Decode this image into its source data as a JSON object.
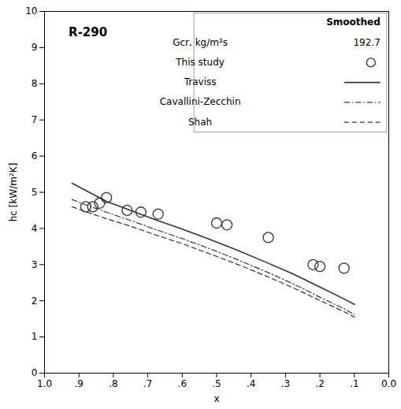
{
  "chart_data": {
    "type": "line",
    "xlabel": "x",
    "ylabel": "hc [kW/m²K]",
    "xlim": [
      1.0,
      0.0
    ],
    "ylim": [
      0,
      10
    ],
    "xticks": [
      {
        "value": 1.0,
        "label": "1.0"
      },
      {
        "value": 0.9,
        "label": ".9"
      },
      {
        "value": 0.8,
        "label": ".8"
      },
      {
        "value": 0.7,
        "label": ".7"
      },
      {
        "value": 0.6,
        "label": ".6"
      },
      {
        "value": 0.5,
        "label": ".5"
      },
      {
        "value": 0.4,
        "label": ".4"
      },
      {
        "value": 0.3,
        "label": ".3"
      },
      {
        "value": 0.2,
        "label": ".2"
      },
      {
        "value": 0.1,
        "label": ".1"
      },
      {
        "value": 0.0,
        "label": "0.0"
      }
    ],
    "yticks": [
      0,
      1,
      2,
      3,
      4,
      5,
      6,
      7,
      8,
      9,
      10
    ],
    "grid": false,
    "legend": "upper right",
    "legend_title": "Smoothed",
    "legend_note": {
      "label": "Gcr, kg/m²s",
      "value": 192.7
    },
    "annotations": [
      {
        "text": "R-290",
        "x": 0.93,
        "y": 9.55
      }
    ],
    "series": [
      {
        "name": "This study",
        "type": "scatter",
        "marker": "circle",
        "color": "#333333",
        "x": [
          0.88,
          0.86,
          0.84,
          0.82,
          0.76,
          0.72,
          0.67,
          0.5,
          0.47,
          0.35,
          0.22,
          0.2,
          0.13
        ],
        "values": [
          4.6,
          4.6,
          4.7,
          4.85,
          4.5,
          4.45,
          4.4,
          4.15,
          4.1,
          3.75,
          3.0,
          2.95,
          2.9
        ]
      },
      {
        "name": "Traviss",
        "type": "line",
        "line_style": "solid",
        "color": "#333333",
        "x": [
          0.92,
          0.88,
          0.82,
          0.75,
          0.68,
          0.6,
          0.52,
          0.44,
          0.36,
          0.28,
          0.2,
          0.13,
          0.1
        ],
        "values": [
          5.25,
          5.05,
          4.75,
          4.5,
          4.25,
          3.98,
          3.7,
          3.4,
          3.08,
          2.75,
          2.38,
          2.05,
          1.9
        ]
      },
      {
        "name": "Cavallini-Zecchin",
        "type": "line",
        "line_style": "dashdot",
        "color": "#333333",
        "x": [
          0.92,
          0.88,
          0.82,
          0.75,
          0.68,
          0.6,
          0.52,
          0.44,
          0.36,
          0.28,
          0.2,
          0.13,
          0.1
        ],
        "values": [
          4.8,
          4.65,
          4.45,
          4.22,
          3.98,
          3.72,
          3.44,
          3.14,
          2.82,
          2.48,
          2.1,
          1.78,
          1.62
        ]
      },
      {
        "name": "Shah",
        "type": "line",
        "line_style": "dashed",
        "color": "#333333",
        "x": [
          0.92,
          0.88,
          0.82,
          0.75,
          0.68,
          0.6,
          0.52,
          0.44,
          0.36,
          0.28,
          0.2,
          0.13,
          0.1
        ],
        "values": [
          4.6,
          4.46,
          4.27,
          4.06,
          3.83,
          3.58,
          3.3,
          3.01,
          2.7,
          2.37,
          2.01,
          1.7,
          1.55
        ]
      }
    ]
  }
}
